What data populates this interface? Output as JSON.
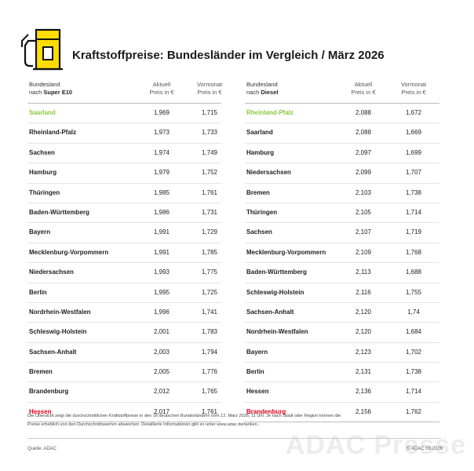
{
  "header": {
    "title": "Kraftstoffpreise: Bundesländer im Vergleich / März 2026"
  },
  "tables": [
    {
      "col1_line1": "Bundesland",
      "col1_prefix": "nach",
      "fuel": "Super E10",
      "col2": [
        "Aktuell",
        "Preis in €"
      ],
      "col3": [
        "Vormonat",
        "Preis in €"
      ],
      "rows": [
        [
          "Saarland",
          "1,969",
          "1,715"
        ],
        [
          "Rheinland-Pfalz",
          "1,973",
          "1,733"
        ],
        [
          "Sachsen",
          "1,974",
          "1,749"
        ],
        [
          "Hamburg",
          "1,979",
          "1,752"
        ],
        [
          "Thüringen",
          "1,985",
          "1,761"
        ],
        [
          "Baden-Württemberg",
          "1,986",
          "1,731"
        ],
        [
          "Bayern",
          "1,991",
          "1,729"
        ],
        [
          "Mecklenburg-Vorpommern",
          "1,991",
          "1,785"
        ],
        [
          "Niedersachsen",
          "1,993",
          "1,775"
        ],
        [
          "Berlin",
          "1,995",
          "1,725"
        ],
        [
          "Nordrhein-Westfalen",
          "1,996",
          "1,741"
        ],
        [
          "Schleswig-Holstein",
          "2,001",
          "1,783"
        ],
        [
          "Sachsen-Anhalt",
          "2,003",
          "1,794"
        ],
        [
          "Bremen",
          "2,005",
          "1,776"
        ],
        [
          "Brandenburg",
          "2,012",
          "1,765"
        ],
        [
          "Hessen",
          "2,017",
          "1,761"
        ]
      ]
    },
    {
      "col1_line1": "Bundesland",
      "col1_prefix": "nach",
      "fuel": "Diesel",
      "col2": [
        "Aktuell",
        "Preis in €"
      ],
      "col3": [
        "Vormonat",
        "Preis in €"
      ],
      "rows": [
        [
          "Rheinland-Pfalz",
          "2,088",
          "1,672"
        ],
        [
          "Saarland",
          "2,088",
          "1,669"
        ],
        [
          "Hamburg",
          "2,097",
          "1,699"
        ],
        [
          "Niedersachsen",
          "2,099",
          "1,707"
        ],
        [
          "Bremen",
          "2,103",
          "1,738"
        ],
        [
          "Thüringen",
          "2,105",
          "1,714"
        ],
        [
          "Sachsen",
          "2,107",
          "1,719"
        ],
        [
          "Mecklenburg-Vorpommern",
          "2,109",
          "1,768"
        ],
        [
          "Baden-Württemberg",
          "2,113",
          "1,688"
        ],
        [
          "Schleswig-Holstein",
          "2,116",
          "1,755"
        ],
        [
          "Sachsen-Anhalt",
          "2,120",
          "1,74"
        ],
        [
          "Nordrhein-Westfalen",
          "2,120",
          "1,684"
        ],
        [
          "Bayern",
          "2,123",
          "1,702"
        ],
        [
          "Berlin",
          "2,131",
          "1,738"
        ],
        [
          "Hessen",
          "2,136",
          "1,714"
        ],
        [
          "Brandenburg",
          "2,156",
          "1,762"
        ]
      ]
    }
  ],
  "footnote": [
    "Die Übersicht zeigt die durchschnittlichen Kraftstoffpreise in den 16 deutschen Bundesländern vom 12. März 2026, 11 Uhr. Je nach Stadt oder Region können die",
    "Preise erheblich von den Durchschnittswerten abweichen. Detaillierte Informationen gibt es unter www.adac.de/tanken."
  ],
  "source": "Quelle: ADAC",
  "copyright": "© ADAC 03.2026",
  "watermark": "ADAC Presse"
}
